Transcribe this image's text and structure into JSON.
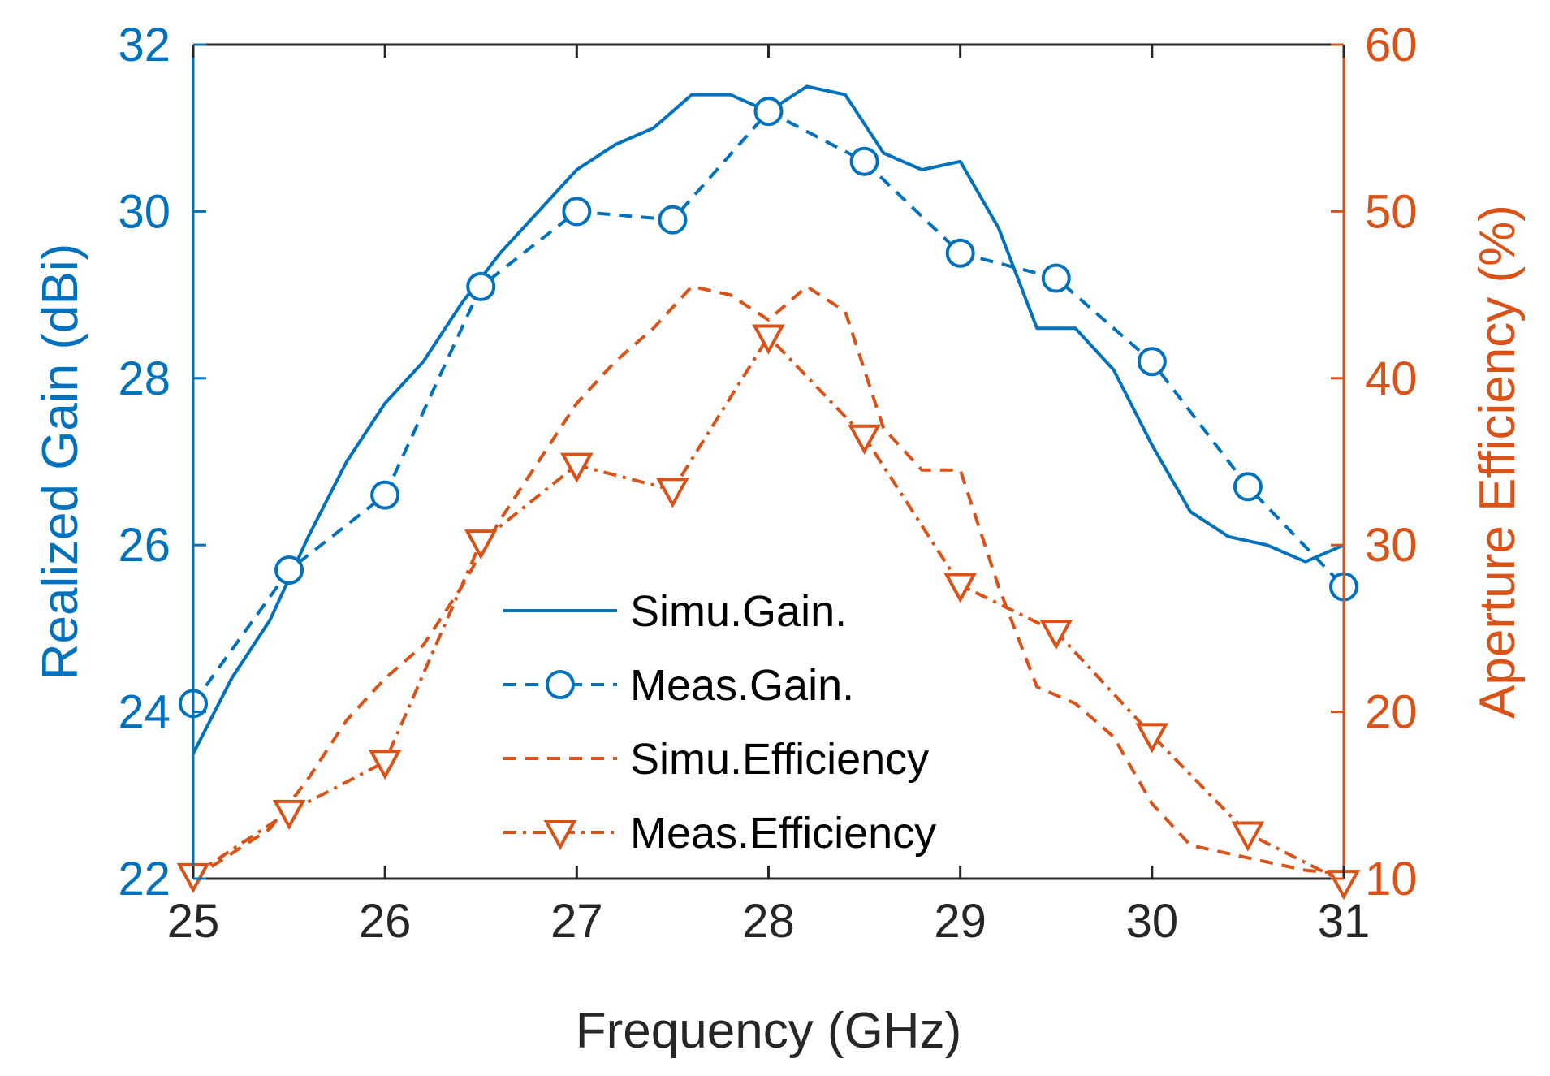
{
  "colors": {
    "left": "#0072BD",
    "right": "#D95319",
    "axis": "#262626",
    "text": "#262626"
  },
  "chart_data": {
    "type": "line",
    "xlabel": "Frequency (GHz)",
    "ylabel_left": "Realized Gain (dBi)",
    "ylabel_right": "Aperture Efficiency (%)",
    "xlim": [
      25,
      31
    ],
    "ylim_left": [
      22,
      32
    ],
    "ylim_right": [
      10,
      60
    ],
    "xticks": [
      25,
      26,
      27,
      28,
      29,
      30,
      31
    ],
    "yticks_left": [
      22,
      24,
      26,
      28,
      30,
      32
    ],
    "yticks_right": [
      10,
      20,
      30,
      40,
      50,
      60
    ],
    "grid": false,
    "legend_position": "lower-center",
    "series": [
      {
        "name": "Simu.Gain.",
        "axis": "left",
        "color_key": "left",
        "line": "solid",
        "marker": "none",
        "x": [
          25,
          25.2,
          25.4,
          25.6,
          25.8,
          26.0,
          26.2,
          26.4,
          26.6,
          26.8,
          27.0,
          27.2,
          27.4,
          27.6,
          27.8,
          28.0,
          28.2,
          28.4,
          28.6,
          28.8,
          29.0,
          29.2,
          29.4,
          29.6,
          29.8,
          30.0,
          30.2,
          30.4,
          30.6,
          30.8,
          31.0
        ],
        "values": [
          23.5,
          24.4,
          25.1,
          26.1,
          27.0,
          27.7,
          28.2,
          28.9,
          29.5,
          30.0,
          30.5,
          30.8,
          31.0,
          31.4,
          31.4,
          31.2,
          31.5,
          31.4,
          30.7,
          30.5,
          30.6,
          29.8,
          28.6,
          28.6,
          28.1,
          27.2,
          26.4,
          26.1,
          26.0,
          25.8,
          26.0
        ]
      },
      {
        "name": "Meas.Gain.",
        "axis": "left",
        "color_key": "left",
        "line": "dashed",
        "marker": "circle",
        "x": [
          25,
          25.5,
          26,
          26.5,
          27,
          27.5,
          28,
          28.5,
          29,
          29.5,
          30,
          30.5,
          31
        ],
        "values": [
          24.1,
          25.7,
          26.6,
          29.1,
          30.0,
          29.9,
          31.2,
          30.6,
          29.5,
          29.2,
          28.2,
          26.7,
          25.5
        ]
      },
      {
        "name": "Simu.Efficiency",
        "axis": "right",
        "color_key": "right",
        "line": "dashed",
        "marker": "none",
        "x": [
          25,
          25.2,
          25.4,
          25.6,
          25.8,
          26.0,
          26.2,
          26.4,
          26.6,
          26.8,
          27.0,
          27.2,
          27.4,
          27.6,
          27.8,
          28.0,
          28.2,
          28.4,
          28.6,
          28.8,
          29.0,
          29.2,
          29.4,
          29.6,
          29.8,
          30.0,
          30.2,
          30.4,
          30.6,
          30.8,
          31.0
        ],
        "values": [
          10.0,
          11.5,
          13.0,
          16.0,
          19.5,
          22.0,
          24.0,
          27.5,
          31.5,
          35.0,
          38.5,
          41.0,
          43.0,
          45.5,
          45.0,
          43.5,
          45.5,
          44.0,
          37.0,
          34.5,
          34.5,
          27.5,
          21.5,
          20.5,
          18.5,
          14.5,
          12.0,
          11.5,
          11.0,
          10.5,
          10.3
        ]
      },
      {
        "name": "Meas.Efficiency",
        "axis": "right",
        "color_key": "right",
        "line": "dashdot",
        "marker": "triangle-down",
        "x": [
          25,
          25.5,
          26,
          26.5,
          27,
          27.5,
          28,
          28.5,
          29,
          29.5,
          30,
          30.5,
          31
        ],
        "values": [
          10.2,
          14.0,
          17.0,
          30.2,
          34.8,
          33.3,
          42.5,
          36.5,
          27.6,
          24.8,
          18.6,
          12.7,
          9.8
        ]
      }
    ]
  }
}
